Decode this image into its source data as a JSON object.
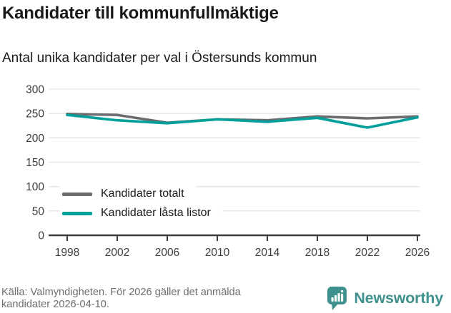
{
  "chart_data": {
    "type": "line",
    "title": "Kandidater till kommunfullmäktige",
    "subtitle": "Antal unika kandidater per val i Östersunds kommun",
    "categories": [
      "1998",
      "2002",
      "2006",
      "2010",
      "2014",
      "2018",
      "2022",
      "2026"
    ],
    "series": [
      {
        "name": "Kandidater totalt",
        "color": "#6b6b70",
        "values": [
          249,
          247,
          231,
          238,
          236,
          244,
          240,
          244
        ]
      },
      {
        "name": "Kandidater låsta listor",
        "color": "#00a09a",
        "values": [
          247,
          236,
          230,
          238,
          233,
          241,
          221,
          242
        ]
      }
    ],
    "xlabel": "",
    "ylabel": "",
    "ylim": [
      0,
      300
    ],
    "yticks": [
      0,
      50,
      100,
      150,
      200,
      250,
      300
    ],
    "grid": true,
    "legend_position": "inside bottom-left"
  },
  "footer": {
    "source_line1": "Källa: Valmyndigheten. För 2026 gäller det anmälda",
    "source_line2": "kandidater 2026-04-10.",
    "brand": "Newsworthy"
  },
  "colors": {
    "accent_teal": "#00a09a",
    "neutral_gray": "#6b6b70",
    "brand_teal": "#3f918e",
    "gridline": "#e4e4e4",
    "axis": "#3c3c3c"
  }
}
